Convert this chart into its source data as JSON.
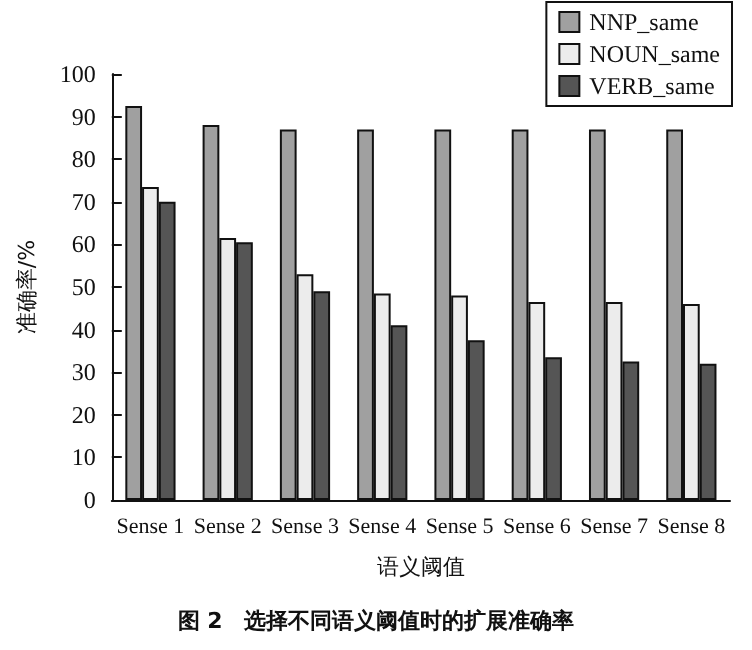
{
  "chart_data": {
    "type": "bar",
    "title": "图 2　选择不同语义阈值时的扩展准确率",
    "xlabel": "语义阈值",
    "ylabel": "准确率/%",
    "categories": [
      "Sense 1",
      "Sense 2",
      "Sense 3",
      "Sense 4",
      "Sense 5",
      "Sense 6",
      "Sense 7",
      "Sense 8"
    ],
    "series": [
      {
        "name": "NNP_same",
        "color": "#a0a0a0",
        "values": [
          92.5,
          88,
          87,
          87,
          87,
          87,
          87,
          87
        ]
      },
      {
        "name": "NOUN_same",
        "color": "#ececec",
        "values": [
          73.5,
          61.5,
          53,
          48.5,
          48,
          46.5,
          46.5,
          46
        ]
      },
      {
        "name": "VERB_same",
        "color": "#555555",
        "values": [
          70,
          60.5,
          49,
          41,
          37.5,
          33.5,
          32.5,
          32
        ]
      }
    ],
    "ylim": [
      0,
      100
    ],
    "yticks": [
      0,
      10,
      20,
      30,
      40,
      50,
      60,
      70,
      80,
      90,
      100
    ],
    "grid": false,
    "legend": "top right"
  }
}
